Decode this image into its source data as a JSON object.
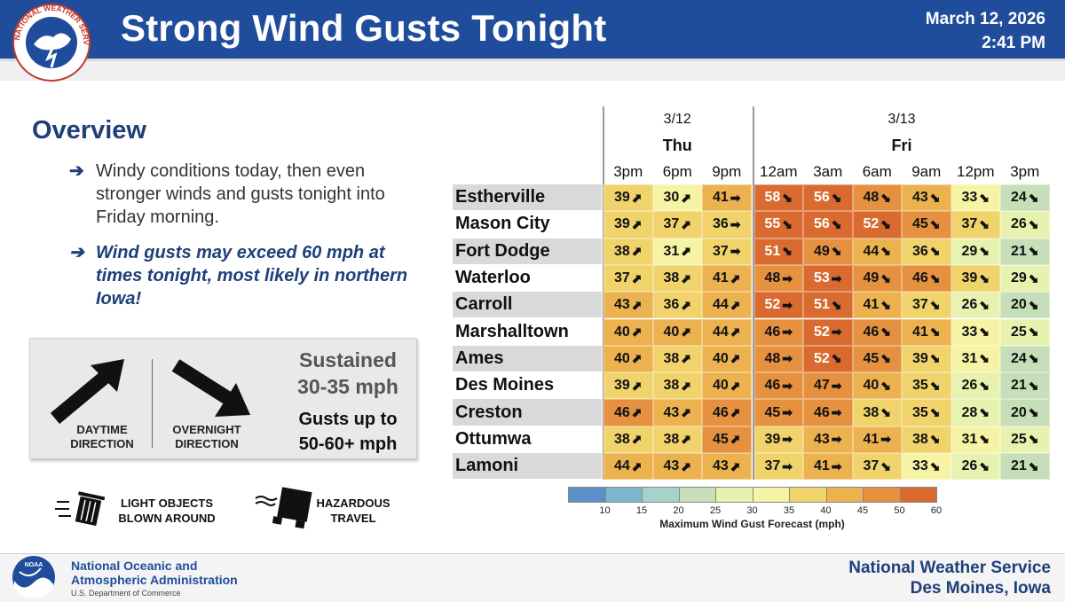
{
  "header": {
    "title": "Strong Wind Gusts Tonight",
    "date": "March 12, 2026",
    "time": "2:41 PM",
    "logo_text": "NATIONAL WEATHER SERVICE"
  },
  "overview": {
    "title": "Overview",
    "bullet1": "Windy conditions today, then even stronger winds and gusts tonight into Friday morning.",
    "bullet2": "Wind gusts may exceed 60 mph at times tonight, most likely in northern Iowa!",
    "arrow": "➔"
  },
  "directions": {
    "day_label_1": "DAYTIME",
    "day_label_2": "DIRECTION",
    "night_label_1": "OVERNIGHT",
    "night_label_2": "DIRECTION",
    "sustained_1": "Sustained",
    "sustained_2": "30-35 mph",
    "gusts_1": "Gusts up to",
    "gusts_2": "50-60+ mph"
  },
  "impacts": {
    "impact1_1": "LIGHT OBJECTS",
    "impact1_2": "BLOWN AROUND",
    "impact2_1": "HAZARDOUS",
    "impact2_2": "TRAVEL"
  },
  "table": {
    "days": [
      {
        "date": "3/12",
        "dow": "Thu"
      },
      {
        "date": "3/13",
        "dow": "Fri"
      }
    ],
    "times": [
      "3pm",
      "6pm",
      "9pm",
      "12am",
      "3am",
      "6am",
      "9am",
      "12pm",
      "3pm"
    ],
    "rows": [
      {
        "city": "Estherville",
        "values": [
          39,
          30,
          41,
          58,
          56,
          48,
          43,
          33,
          24
        ],
        "dirs": [
          "ne",
          "ne",
          "e",
          "se",
          "se",
          "se",
          "se",
          "se",
          "se"
        ]
      },
      {
        "city": "Mason City",
        "values": [
          39,
          37,
          36,
          55,
          56,
          52,
          45,
          37,
          26
        ],
        "dirs": [
          "ne",
          "ne",
          "e",
          "se",
          "se",
          "se",
          "se",
          "se",
          "se"
        ]
      },
      {
        "city": "Fort Dodge",
        "values": [
          38,
          31,
          37,
          51,
          49,
          44,
          36,
          29,
          21
        ],
        "dirs": [
          "ne",
          "ne",
          "e",
          "se",
          "se",
          "se",
          "se",
          "se",
          "se"
        ]
      },
      {
        "city": "Waterloo",
        "values": [
          37,
          38,
          41,
          48,
          53,
          49,
          46,
          39,
          29
        ],
        "dirs": [
          "ne",
          "ne",
          "ne",
          "e",
          "e",
          "se",
          "se",
          "se",
          "se"
        ]
      },
      {
        "city": "Carroll",
        "values": [
          43,
          36,
          44,
          52,
          51,
          41,
          37,
          26,
          20
        ],
        "dirs": [
          "ne",
          "ne",
          "ne",
          "e",
          "se",
          "se",
          "se",
          "se",
          "se"
        ]
      },
      {
        "city": "Marshalltown",
        "values": [
          40,
          40,
          44,
          46,
          52,
          46,
          41,
          33,
          25
        ],
        "dirs": [
          "ne",
          "ne",
          "ne",
          "e",
          "e",
          "se",
          "se",
          "se",
          "se"
        ]
      },
      {
        "city": "Ames",
        "values": [
          40,
          38,
          40,
          48,
          52,
          45,
          39,
          31,
          24
        ],
        "dirs": [
          "ne",
          "ne",
          "ne",
          "e",
          "se",
          "se",
          "se",
          "se",
          "se"
        ]
      },
      {
        "city": "Des Moines",
        "values": [
          39,
          38,
          40,
          46,
          47,
          40,
          35,
          26,
          21
        ],
        "dirs": [
          "ne",
          "ne",
          "ne",
          "e",
          "e",
          "se",
          "se",
          "se",
          "se"
        ]
      },
      {
        "city": "Creston",
        "values": [
          46,
          43,
          46,
          45,
          46,
          38,
          35,
          28,
          20
        ],
        "dirs": [
          "ne",
          "ne",
          "ne",
          "e",
          "e",
          "se",
          "se",
          "se",
          "se"
        ]
      },
      {
        "city": "Ottumwa",
        "values": [
          38,
          38,
          45,
          39,
          43,
          41,
          38,
          31,
          25
        ],
        "dirs": [
          "ne",
          "ne",
          "ne",
          "e",
          "e",
          "e",
          "se",
          "se",
          "se"
        ]
      },
      {
        "city": "Lamoni",
        "values": [
          44,
          43,
          43,
          37,
          41,
          37,
          33,
          26,
          21
        ],
        "dirs": [
          "ne",
          "ne",
          "ne",
          "e",
          "e",
          "se",
          "se",
          "se",
          "se"
        ]
      }
    ]
  },
  "legend": {
    "ticks": [
      "10",
      "15",
      "20",
      "25",
      "30",
      "35",
      "40",
      "45",
      "50",
      "60"
    ],
    "title": "Maximum Wind Gust Forecast (mph)",
    "colors": [
      "#5b8fc7",
      "#7cb7cf",
      "#a5d3c9",
      "#c6dfb8",
      "#e8f2b0",
      "#f7f3a5",
      "#f1d36c",
      "#ecb24f",
      "#e59140",
      "#d96a30"
    ]
  },
  "footer": {
    "noaa_1": "National Oceanic and",
    "noaa_2": "Atmospheric Administration",
    "dept": "U.S. Department of Commerce",
    "noaa_logo_text": "NOAA",
    "office_1": "National Weather Service",
    "office_2": "Des Moines, Iowa"
  }
}
